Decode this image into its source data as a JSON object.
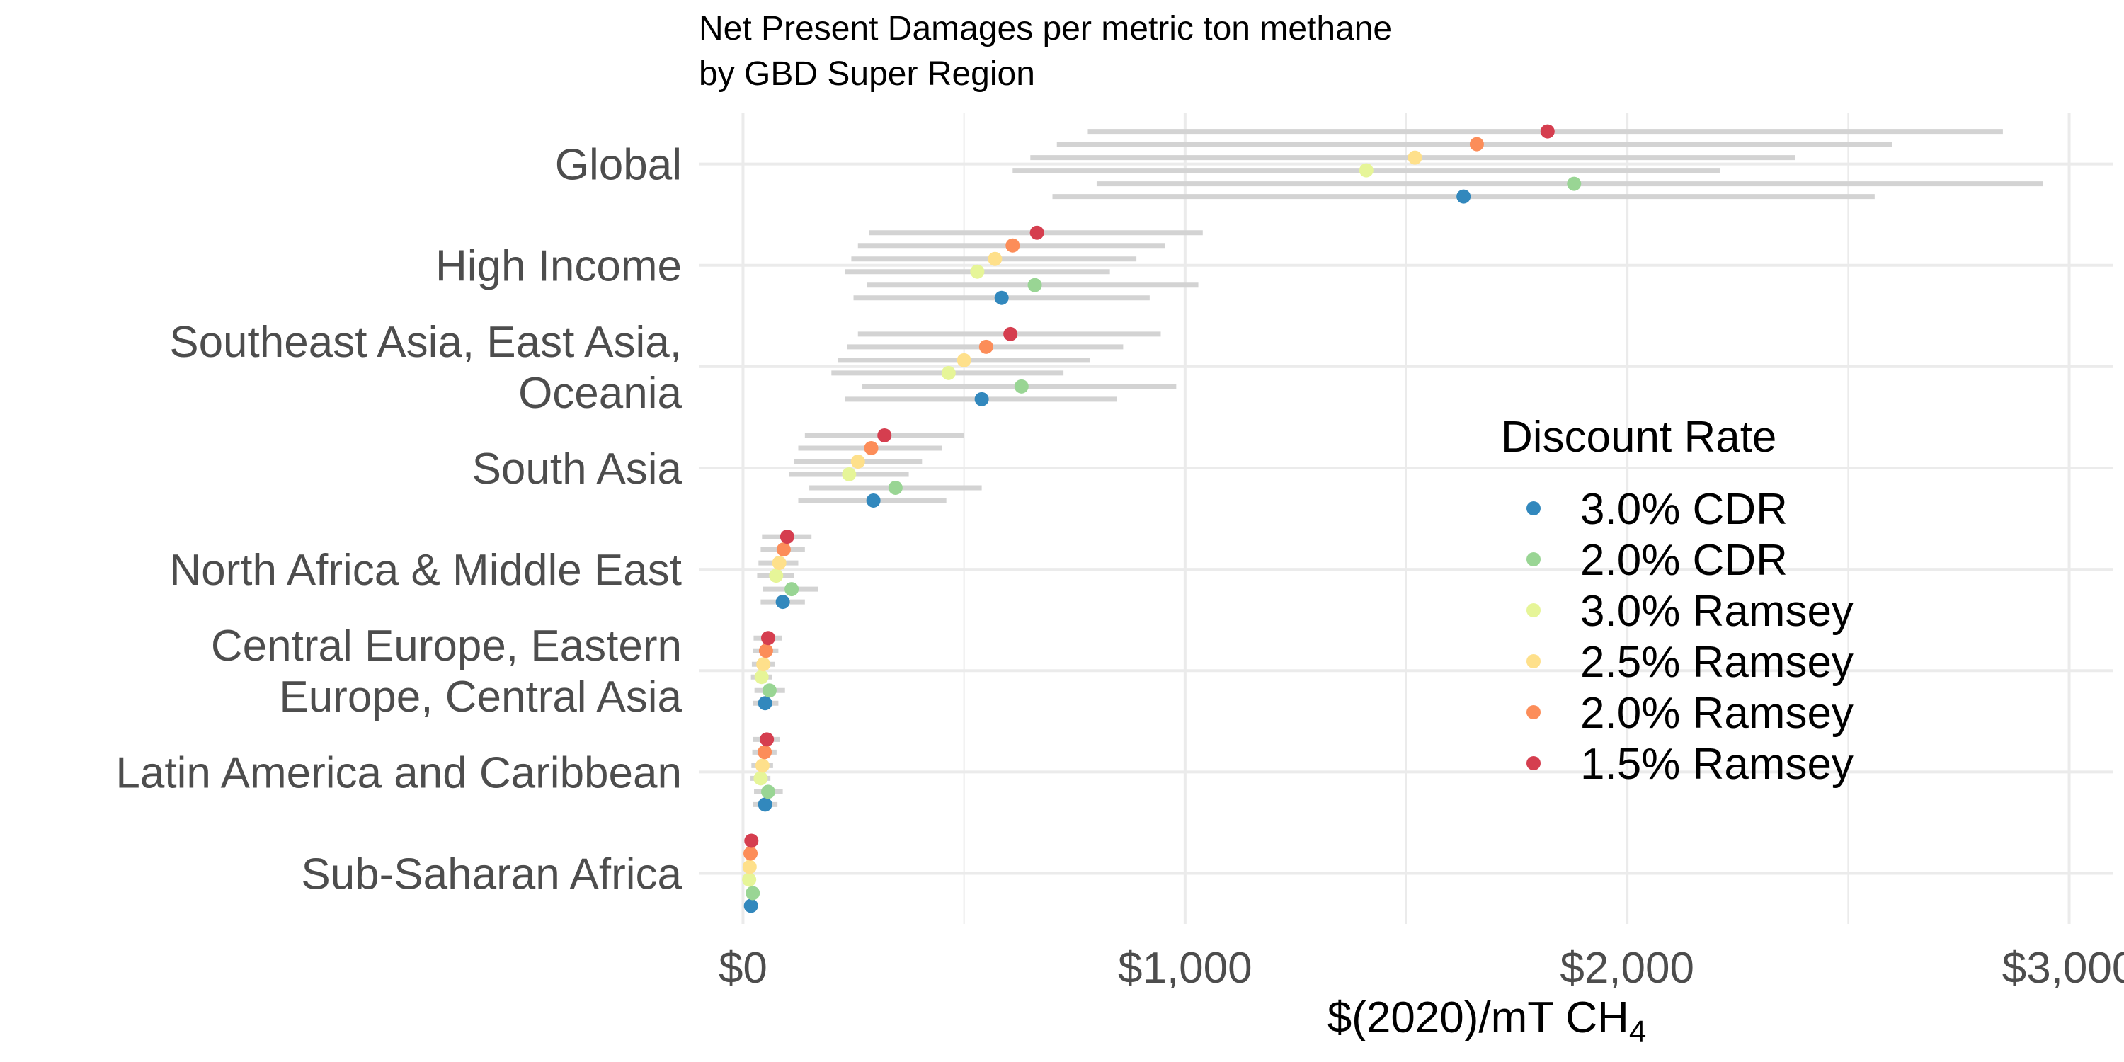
{
  "chart_data": {
    "type": "scatter",
    "title_lines": [
      "Net Present Damages per metric ton methane",
      "by GBD Super Region"
    ],
    "xlabel": "$(2020)/mT CH",
    "xlabel_subscript": "4",
    "xlim": [
      -100,
      3100
    ],
    "x_ticks": [
      0,
      1000,
      2000,
      3000
    ],
    "x_tick_labels": [
      "$0",
      "$1,000",
      "$2,000",
      "$3,000"
    ],
    "grid": true,
    "legend_placement": "right",
    "legend_title": "Discount Rate",
    "series": [
      {
        "name": "3.0% CDR",
        "color": "#3288bd"
      },
      {
        "name": "2.0% CDR",
        "color": "#99d594"
      },
      {
        "name": "3.0% Ramsey",
        "color": "#e6f598"
      },
      {
        "name": "2.5% Ramsey",
        "color": "#fee08b"
      },
      {
        "name": "2.0% Ramsey",
        "color": "#fc8d59"
      },
      {
        "name": "1.5% Ramsey",
        "color": "#d53e4f"
      }
    ],
    "regions": [
      {
        "label_lines": [
          "Global"
        ],
        "points": [
          {
            "value": 1630,
            "low": 700,
            "high": 2560
          },
          {
            "value": 1880,
            "low": 800,
            "high": 2940
          },
          {
            "value": 1410,
            "low": 610,
            "high": 2210
          },
          {
            "value": 1520,
            "low": 650,
            "high": 2380
          },
          {
            "value": 1660,
            "low": 710,
            "high": 2600
          },
          {
            "value": 1820,
            "low": 780,
            "high": 2850
          }
        ]
      },
      {
        "label_lines": [
          "High Income"
        ],
        "points": [
          {
            "value": 585,
            "low": 250,
            "high": 920
          },
          {
            "value": 660,
            "low": 280,
            "high": 1030
          },
          {
            "value": 530,
            "low": 230,
            "high": 830
          },
          {
            "value": 570,
            "low": 245,
            "high": 890
          },
          {
            "value": 610,
            "low": 260,
            "high": 955
          },
          {
            "value": 665,
            "low": 285,
            "high": 1040
          }
        ]
      },
      {
        "label_lines": [
          "Southeast Asia, East Asia,",
          "Oceania"
        ],
        "points": [
          {
            "value": 540,
            "low": 230,
            "high": 845
          },
          {
            "value": 630,
            "low": 270,
            "high": 980
          },
          {
            "value": 465,
            "low": 200,
            "high": 725
          },
          {
            "value": 500,
            "low": 215,
            "high": 785
          },
          {
            "value": 550,
            "low": 235,
            "high": 860
          },
          {
            "value": 605,
            "low": 260,
            "high": 945
          }
        ]
      },
      {
        "label_lines": [
          "South Asia"
        ],
        "points": [
          {
            "value": 295,
            "low": 125,
            "high": 460
          },
          {
            "value": 345,
            "low": 150,
            "high": 540
          },
          {
            "value": 240,
            "low": 105,
            "high": 375
          },
          {
            "value": 260,
            "low": 115,
            "high": 405
          },
          {
            "value": 290,
            "low": 125,
            "high": 450
          },
          {
            "value": 320,
            "low": 140,
            "high": 500
          }
        ]
      },
      {
        "label_lines": [
          "North Africa & Middle East"
        ],
        "points": [
          {
            "value": 90,
            "low": 40,
            "high": 140
          },
          {
            "value": 110,
            "low": 45,
            "high": 170
          },
          {
            "value": 75,
            "low": 32,
            "high": 115
          },
          {
            "value": 82,
            "low": 35,
            "high": 125
          },
          {
            "value": 92,
            "low": 40,
            "high": 140
          },
          {
            "value": 100,
            "low": 43,
            "high": 155
          }
        ]
      },
      {
        "label_lines": [
          "Central Europe, Eastern",
          "Europe, Central Asia"
        ],
        "points": [
          {
            "value": 50,
            "low": 22,
            "high": 80
          },
          {
            "value": 60,
            "low": 26,
            "high": 95
          },
          {
            "value": 42,
            "low": 18,
            "high": 65
          },
          {
            "value": 46,
            "low": 20,
            "high": 72
          },
          {
            "value": 52,
            "low": 22,
            "high": 80
          },
          {
            "value": 57,
            "low": 24,
            "high": 88
          }
        ]
      },
      {
        "label_lines": [
          "Latin America and Caribbean"
        ],
        "points": [
          {
            "value": 50,
            "low": 22,
            "high": 78
          },
          {
            "value": 57,
            "low": 25,
            "high": 90
          },
          {
            "value": 40,
            "low": 17,
            "high": 62
          },
          {
            "value": 44,
            "low": 19,
            "high": 68
          },
          {
            "value": 49,
            "low": 21,
            "high": 76
          },
          {
            "value": 54,
            "low": 23,
            "high": 84
          }
        ]
      },
      {
        "label_lines": [
          "Sub-Saharan Africa"
        ],
        "points": [
          {
            "value": 18,
            "low": 8,
            "high": 28
          },
          {
            "value": 22,
            "low": 10,
            "high": 34
          },
          {
            "value": 14,
            "low": 6,
            "high": 22
          },
          {
            "value": 15,
            "low": 7,
            "high": 24
          },
          {
            "value": 17,
            "low": 7,
            "high": 26
          },
          {
            "value": 19,
            "low": 8,
            "high": 30
          }
        ]
      }
    ]
  }
}
